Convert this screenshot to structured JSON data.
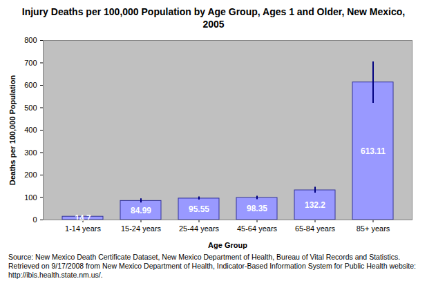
{
  "chart_data": {
    "type": "bar",
    "title": "Injury Deaths per 100,000 Population by Age Group, Ages 1 and Older, New Mexico, 2005",
    "x_label": "Age Group",
    "y_label": "Deaths per 100,000 Population",
    "caption": "Source: New Mexico Death Certificate Dataset, New Mexico Department of Health, Bureau of Vital Records and Statistics. Retrieved on 9/17/2008 from New Mexico Department of Health, Indicator-Based Information System for Public Health website: http://ibis.health.state.nm.us/.",
    "categories": [
      "1-14 years",
      "15-24 years",
      "25-44 years",
      "45-64 years",
      "65-84 years",
      "85+ years"
    ],
    "values": [
      14.7,
      84.99,
      95.55,
      98.35,
      132.2,
      613.11
    ],
    "error_lower": [
      11,
      76,
      89,
      91,
      120,
      520
    ],
    "error_upper": [
      18,
      95,
      103,
      106,
      146,
      705
    ],
    "color": "#9999ff",
    "ylim": [
      0,
      800
    ],
    "yticks": [
      0,
      100,
      200,
      300,
      400,
      500,
      600,
      700,
      800
    ],
    "grid": false,
    "data_labels": true
  }
}
